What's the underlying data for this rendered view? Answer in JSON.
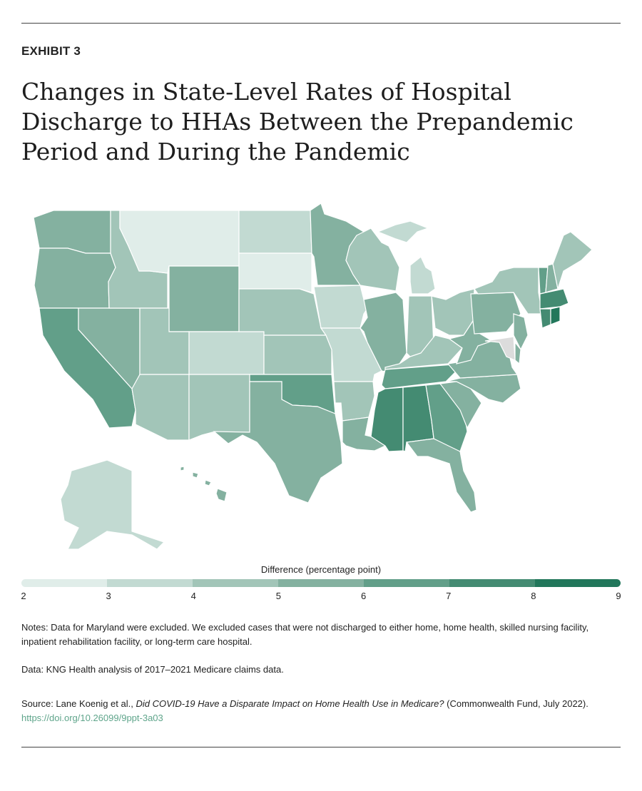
{
  "exhibit_label": "EXHIBIT 3",
  "title": "Changes in State-Level Rates of Hospital Discharge to HHAs Between the Prepandemic Period and During the Pandemic",
  "legend": {
    "title": "Difference (percentage point)",
    "ticks": [
      "2",
      "3",
      "4",
      "5",
      "6",
      "7",
      "8",
      "9"
    ],
    "bin_colors": [
      "#e0ede9",
      "#c2dad2",
      "#a2c5b8",
      "#84b1a0",
      "#629f89",
      "#448b72",
      "#22775b"
    ],
    "excluded_color": "#dcdcdc"
  },
  "map_data": {
    "type": "choropleth",
    "unit": "percentage point",
    "state_bins": {
      "MT": [
        2,
        3
      ],
      "SD": [
        2,
        3
      ],
      "ND": [
        3,
        4
      ],
      "IA": [
        3,
        4
      ],
      "MO": [
        3,
        4
      ],
      "CO": [
        3,
        4
      ],
      "MI": [
        3,
        4
      ],
      "AK": [
        3,
        4
      ],
      "ID": [
        4,
        5
      ],
      "UT": [
        4,
        5
      ],
      "AZ": [
        4,
        5
      ],
      "NM": [
        4,
        5
      ],
      "NE": [
        4,
        5
      ],
      "KS": [
        4,
        5
      ],
      "WI": [
        4,
        5
      ],
      "IN": [
        4,
        5
      ],
      "OH": [
        4,
        5
      ],
      "KY": [
        4,
        5
      ],
      "AR": [
        4,
        5
      ],
      "NY": [
        4,
        5
      ],
      "ME": [
        4,
        5
      ],
      "WA": [
        5,
        6
      ],
      "OR": [
        5,
        6
      ],
      "NV": [
        5,
        6
      ],
      "WY": [
        5,
        6
      ],
      "MN": [
        5,
        6
      ],
      "TX": [
        5,
        6
      ],
      "IL": [
        5,
        6
      ],
      "LA": [
        5,
        6
      ],
      "FL": [
        5,
        6
      ],
      "NC": [
        5,
        6
      ],
      "VA": [
        5,
        6
      ],
      "WV": [
        5,
        6
      ],
      "PA": [
        5,
        6
      ],
      "NJ": [
        5,
        6
      ],
      "NH": [
        5,
        6
      ],
      "HI": [
        5,
        6
      ],
      "SC": [
        5,
        6
      ],
      "DE": [
        5,
        6
      ],
      "CA": [
        6,
        7
      ],
      "OK": [
        6,
        7
      ],
      "TN": [
        6,
        7
      ],
      "GA": [
        6,
        7
      ],
      "VT": [
        6,
        7
      ],
      "MS": [
        7,
        8
      ],
      "AL": [
        7,
        8
      ],
      "MA": [
        7,
        8
      ],
      "CT": [
        7,
        8
      ],
      "RI": [
        8,
        9
      ],
      "MD": null
    }
  },
  "notes": "Notes: Data for Maryland were excluded. We excluded cases that were not discharged to either home, home health, skilled nursing facility, inpatient rehabilitation facility, or long-term care hospital.",
  "data_source": "Data: KNG Health analysis of 2017–2021 Medicare claims data.",
  "source": {
    "prefix": "Source: Lane Koenig et al., ",
    "title": "Did COVID-19 Have a Disparate Impact on Home Health Use in Medicare?",
    "suffix": " (Commonwealth Fund, July 2022). ",
    "link": "https://doi.org/10.26099/9ppt-3a03"
  }
}
